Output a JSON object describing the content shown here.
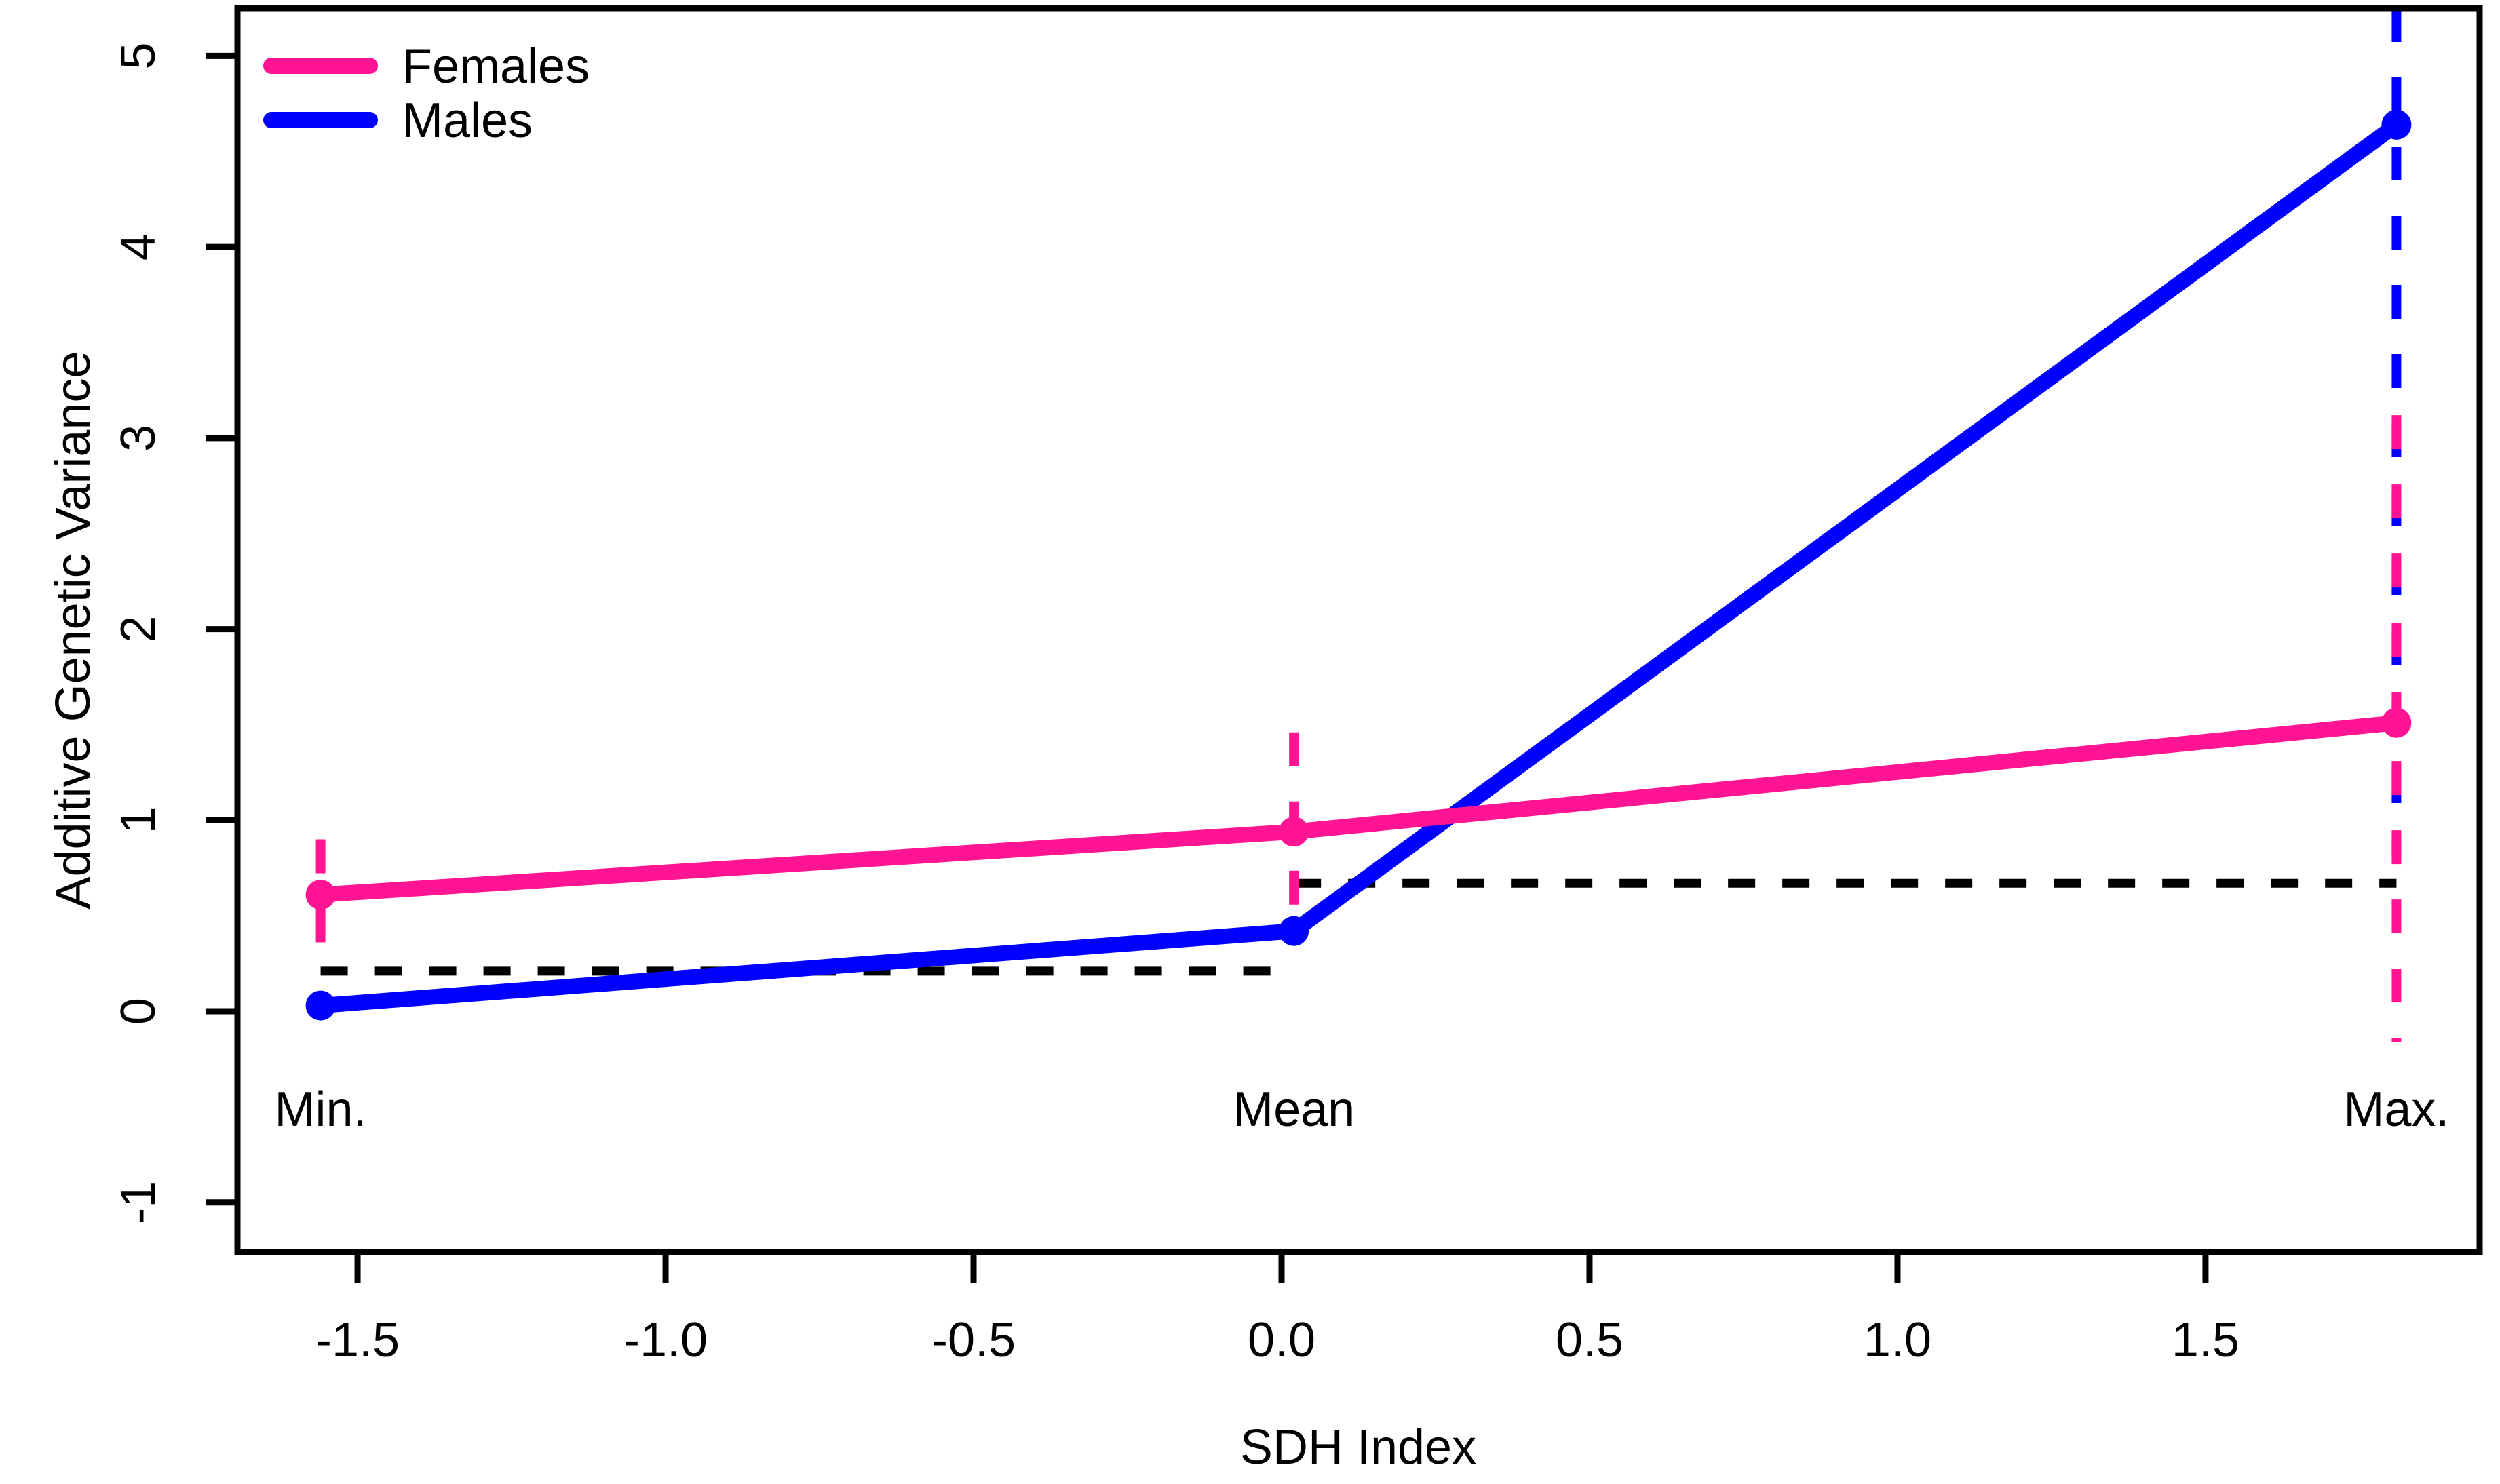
{
  "colors": {
    "females": "#FF1493",
    "males": "#0000FF",
    "axis": "#000000",
    "reference": "#000000",
    "background": "#FFFFFF"
  },
  "legend": {
    "position": "top-left",
    "items": [
      {
        "label": "Females",
        "color": "#FF1493"
      },
      {
        "label": "Males",
        "color": "#0000FF"
      }
    ]
  },
  "chart_data": {
    "type": "line",
    "title": "",
    "xlabel": "SDH Index",
    "ylabel": "Additive Genetic Variance",
    "xlim": [
      -1.695,
      1.945
    ],
    "ylim": [
      -1.26,
      5.25
    ],
    "grid": false,
    "x_ticks": [
      -1.5,
      -1.0,
      -0.5,
      0.0,
      0.5,
      1.0,
      1.5
    ],
    "x_tick_labels": [
      "-1.5",
      "-1.0",
      "-0.5",
      "0.0",
      "0.5",
      "1.0",
      "1.5"
    ],
    "y_ticks": [
      -1,
      0,
      1,
      2,
      3,
      4,
      5
    ],
    "y_tick_labels": [
      "-1",
      "0",
      "1",
      "2",
      "3",
      "4",
      "5"
    ],
    "x": [
      -1.56,
      0.02,
      1.81
    ],
    "point_annotations": [
      {
        "text": "Min.",
        "x": -1.56,
        "y": -0.6
      },
      {
        "text": "Mean",
        "x": 0.02,
        "y": -0.6
      },
      {
        "text": "Max.",
        "x": 1.81,
        "y": -0.6
      }
    ],
    "series": [
      {
        "name": "Males",
        "color": "#0000FF",
        "values": [
          0.03,
          0.42,
          4.64
        ],
        "ci": [
          {
            "x": 1.81,
            "low": 0.81,
            "high": 5.6,
            "clipped_at_top": true
          }
        ]
      },
      {
        "name": "Females",
        "color": "#FF1493",
        "values": [
          0.61,
          0.94,
          1.51
        ],
        "ci": [
          {
            "x": -1.56,
            "low": 0.31,
            "high": 0.9
          },
          {
            "x": 0.02,
            "low": 0.38,
            "high": 1.46
          },
          {
            "x": 1.81,
            "low": -0.16,
            "high": 3.12
          }
        ]
      }
    ],
    "reference_lines": [
      {
        "y": 0.21,
        "x_from": -1.56,
        "x_to": 0.02,
        "style": "dashed",
        "color": "#000000"
      },
      {
        "y": 0.67,
        "x_from": 0.02,
        "x_to": 1.81,
        "style": "dashed",
        "color": "#000000"
      }
    ]
  }
}
